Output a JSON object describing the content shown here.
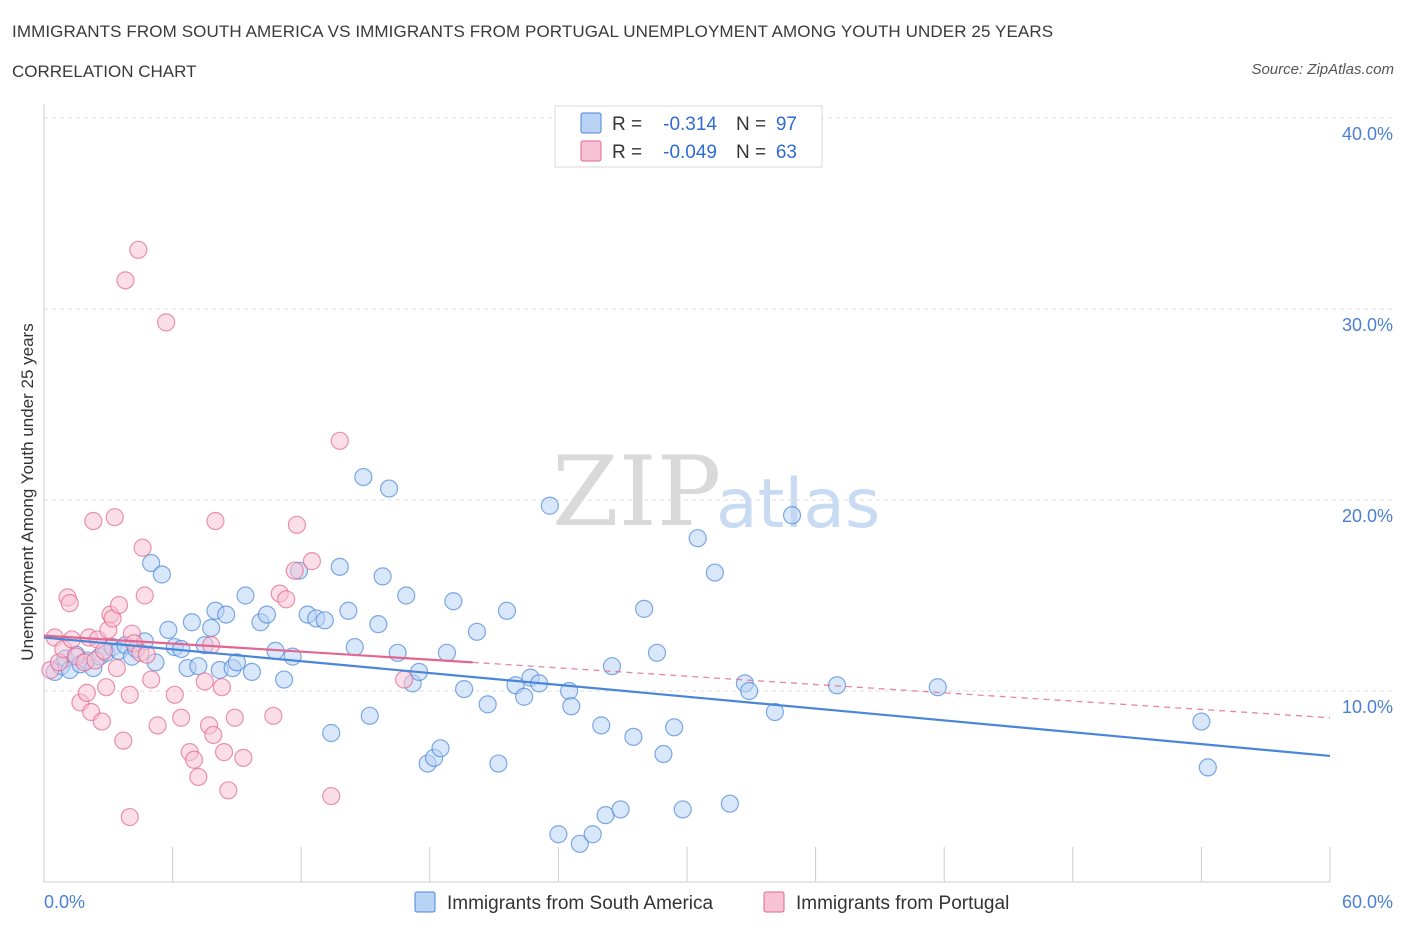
{
  "title": "IMMIGRANTS FROM SOUTH AMERICA VS IMMIGRANTS FROM PORTUGAL UNEMPLOYMENT AMONG YOUTH UNDER 25 YEARS",
  "subtitle": "CORRELATION CHART",
  "source": "Source: ZipAtlas.com",
  "watermark": {
    "zip": "ZIP",
    "atlas": "atlas"
  },
  "colors": {
    "blue": "#4a86d8",
    "blue_fill": "#b9d3f5",
    "pink": "#e2668f",
    "pink_fill": "#f7c3d4",
    "axis_text": "#4a7fd4",
    "grid": "#dddddd"
  },
  "legend": {
    "r_label": "R =",
    "n_label": "N =",
    "series": [
      {
        "name": "Immigrants from South America",
        "r": "-0.314",
        "n": "97",
        "color": "blue"
      },
      {
        "name": "Immigrants from Portugal",
        "r": "-0.049",
        "n": "63",
        "color": "pink"
      }
    ]
  },
  "chart_data": {
    "type": "scatter",
    "title": "IMMIGRANTS FROM SOUTH AMERICA VS IMMIGRANTS FROM PORTUGAL UNEMPLOYMENT AMONG YOUTH UNDER 25 YEARS",
    "xlabel": "",
    "ylabel": "Unemployment Among Youth under 25 years",
    "xlim": [
      0,
      60
    ],
    "ylim": [
      0,
      40
    ],
    "x_tick_labels": [
      "0.0%",
      "60.0%"
    ],
    "y_ticks": [
      10,
      20,
      30,
      40
    ],
    "y_tick_labels": [
      "10.0%",
      "20.0%",
      "30.0%",
      "40.0%"
    ],
    "grid": true,
    "series": [
      {
        "name": "Immigrants from South America",
        "color": "blue",
        "trend": {
          "x0": 0,
          "y0": 12.8,
          "x1": 60,
          "y1": 6.6,
          "style": "solid"
        },
        "points": [
          [
            0.5,
            11.0
          ],
          [
            0.8,
            11.3
          ],
          [
            1.0,
            11.7
          ],
          [
            1.2,
            11.1
          ],
          [
            1.5,
            11.9
          ],
          [
            1.7,
            11.4
          ],
          [
            2.0,
            11.6
          ],
          [
            2.3,
            11.2
          ],
          [
            2.6,
            11.8
          ],
          [
            2.9,
            12.0
          ],
          [
            3.2,
            12.3
          ],
          [
            3.5,
            12.1
          ],
          [
            3.8,
            12.4
          ],
          [
            4.1,
            11.8
          ],
          [
            4.3,
            12.2
          ],
          [
            4.7,
            12.6
          ],
          [
            5.0,
            16.7
          ],
          [
            5.2,
            11.5
          ],
          [
            5.5,
            16.1
          ],
          [
            5.8,
            13.2
          ],
          [
            6.1,
            12.3
          ],
          [
            6.4,
            12.2
          ],
          [
            6.7,
            11.2
          ],
          [
            6.9,
            13.6
          ],
          [
            7.2,
            11.3
          ],
          [
            7.5,
            12.4
          ],
          [
            7.8,
            13.3
          ],
          [
            8.0,
            14.2
          ],
          [
            8.2,
            11.1
          ],
          [
            8.5,
            14.0
          ],
          [
            8.8,
            11.2
          ],
          [
            9.0,
            11.5
          ],
          [
            9.4,
            15.0
          ],
          [
            9.7,
            11.0
          ],
          [
            10.1,
            13.6
          ],
          [
            10.4,
            14.0
          ],
          [
            10.8,
            12.1
          ],
          [
            11.2,
            10.6
          ],
          [
            11.6,
            11.8
          ],
          [
            11.9,
            16.3
          ],
          [
            12.3,
            14.0
          ],
          [
            12.7,
            13.8
          ],
          [
            13.1,
            13.7
          ],
          [
            13.4,
            7.8
          ],
          [
            13.8,
            16.5
          ],
          [
            14.2,
            14.2
          ],
          [
            14.5,
            12.3
          ],
          [
            14.9,
            21.2
          ],
          [
            15.2,
            8.7
          ],
          [
            15.6,
            13.5
          ],
          [
            15.8,
            16.0
          ],
          [
            16.1,
            20.6
          ],
          [
            16.5,
            12.0
          ],
          [
            16.9,
            15.0
          ],
          [
            17.2,
            10.4
          ],
          [
            17.5,
            11.0
          ],
          [
            17.9,
            6.2
          ],
          [
            18.2,
            6.5
          ],
          [
            18.5,
            7.0
          ],
          [
            18.8,
            12.0
          ],
          [
            19.1,
            14.7
          ],
          [
            19.6,
            10.1
          ],
          [
            20.2,
            13.1
          ],
          [
            20.7,
            9.3
          ],
          [
            21.2,
            6.2
          ],
          [
            21.6,
            14.2
          ],
          [
            22.0,
            10.3
          ],
          [
            22.4,
            9.7
          ],
          [
            22.7,
            10.7
          ],
          [
            23.1,
            10.4
          ],
          [
            23.6,
            19.7
          ],
          [
            24.0,
            2.5
          ],
          [
            24.5,
            10.0
          ],
          [
            24.6,
            9.2
          ],
          [
            25.0,
            2.0
          ],
          [
            25.6,
            2.5
          ],
          [
            26.0,
            8.2
          ],
          [
            26.2,
            3.5
          ],
          [
            26.5,
            11.3
          ],
          [
            26.9,
            3.8
          ],
          [
            27.5,
            7.6
          ],
          [
            28.0,
            14.3
          ],
          [
            28.6,
            12.0
          ],
          [
            28.9,
            6.7
          ],
          [
            29.4,
            8.1
          ],
          [
            29.8,
            3.8
          ],
          [
            30.5,
            18.0
          ],
          [
            31.3,
            16.2
          ],
          [
            32.0,
            4.1
          ],
          [
            32.7,
            10.4
          ],
          [
            32.9,
            10.0
          ],
          [
            34.1,
            8.9
          ],
          [
            34.9,
            19.2
          ],
          [
            37.0,
            10.3
          ],
          [
            41.7,
            10.2
          ],
          [
            54.0,
            8.4
          ],
          [
            54.3,
            6.0
          ]
        ]
      },
      {
        "name": "Immigrants from Portugal",
        "color": "pink",
        "trend": {
          "x0": 0,
          "y0": 12.9,
          "x1": 20,
          "y1": 11.5,
          "style": "solid",
          "dashed_to": {
            "x": 60,
            "y": 8.6
          }
        },
        "points": [
          [
            0.3,
            11.1
          ],
          [
            0.5,
            12.8
          ],
          [
            0.7,
            11.5
          ],
          [
            0.9,
            12.2
          ],
          [
            1.1,
            14.9
          ],
          [
            1.2,
            14.6
          ],
          [
            1.3,
            12.7
          ],
          [
            1.5,
            11.8
          ],
          [
            1.7,
            9.4
          ],
          [
            1.9,
            11.5
          ],
          [
            2.0,
            9.9
          ],
          [
            2.1,
            12.8
          ],
          [
            2.2,
            8.9
          ],
          [
            2.3,
            18.9
          ],
          [
            2.4,
            11.6
          ],
          [
            2.5,
            12.7
          ],
          [
            2.7,
            8.4
          ],
          [
            2.8,
            12.1
          ],
          [
            2.9,
            10.2
          ],
          [
            3.0,
            13.2
          ],
          [
            3.1,
            14.0
          ],
          [
            3.2,
            13.8
          ],
          [
            3.3,
            19.1
          ],
          [
            3.4,
            11.2
          ],
          [
            3.5,
            14.5
          ],
          [
            3.7,
            7.4
          ],
          [
            3.8,
            31.5
          ],
          [
            4.0,
            9.8
          ],
          [
            4.0,
            3.4
          ],
          [
            4.1,
            13.0
          ],
          [
            4.2,
            12.5
          ],
          [
            4.4,
            33.1
          ],
          [
            4.5,
            12.0
          ],
          [
            4.6,
            17.5
          ],
          [
            4.7,
            15.0
          ],
          [
            4.8,
            11.9
          ],
          [
            5.0,
            10.6
          ],
          [
            5.3,
            8.2
          ],
          [
            5.7,
            29.3
          ],
          [
            6.1,
            9.8
          ],
          [
            6.4,
            8.6
          ],
          [
            6.8,
            6.8
          ],
          [
            7.0,
            6.4
          ],
          [
            7.2,
            5.5
          ],
          [
            7.5,
            10.5
          ],
          [
            7.7,
            8.2
          ],
          [
            7.8,
            12.4
          ],
          [
            7.9,
            7.7
          ],
          [
            8.0,
            18.9
          ],
          [
            8.3,
            10.2
          ],
          [
            8.4,
            6.8
          ],
          [
            8.6,
            4.8
          ],
          [
            8.9,
            8.6
          ],
          [
            9.3,
            6.5
          ],
          [
            10.7,
            8.7
          ],
          [
            11.0,
            15.1
          ],
          [
            11.3,
            14.8
          ],
          [
            11.7,
            16.3
          ],
          [
            11.8,
            18.7
          ],
          [
            12.5,
            16.8
          ],
          [
            13.4,
            4.5
          ],
          [
            13.8,
            23.1
          ],
          [
            16.8,
            10.6
          ]
        ]
      }
    ]
  },
  "bottom_legend": [
    "Immigrants from South America",
    "Immigrants from Portugal"
  ]
}
